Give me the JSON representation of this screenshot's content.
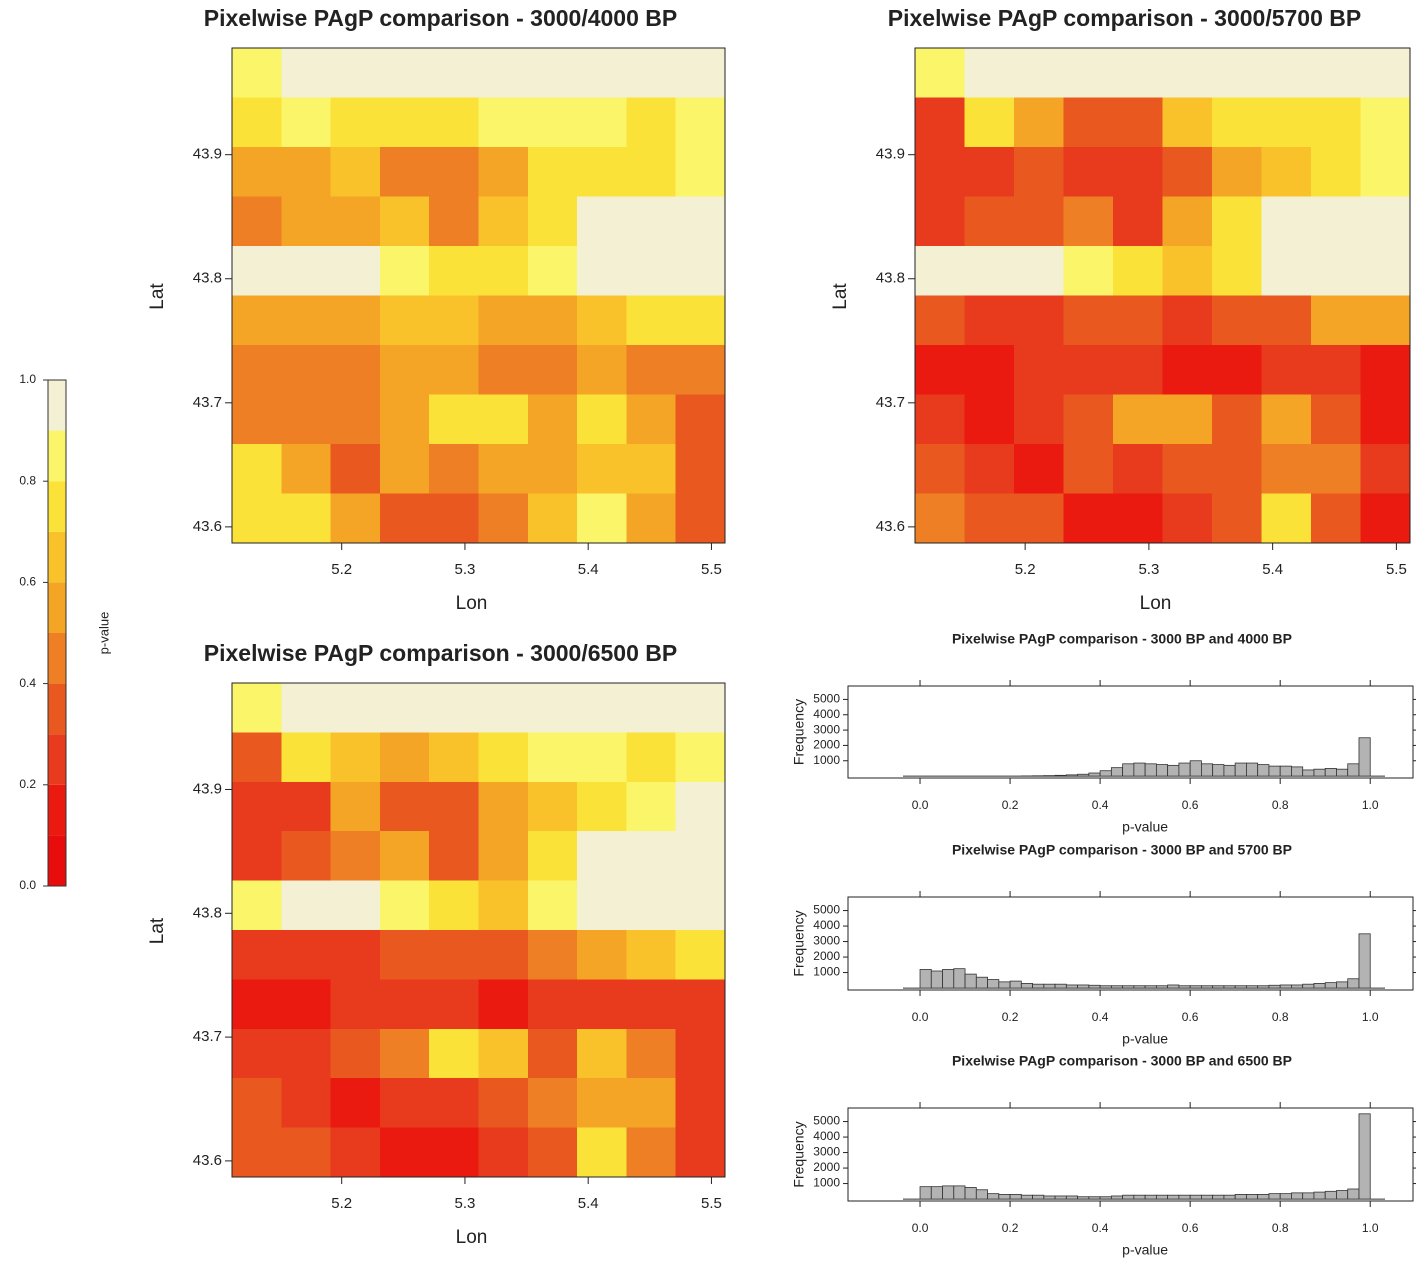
{
  "chart_data": [
    {
      "type": "colorbar",
      "title": "p-value",
      "lim": [
        0,
        1
      ],
      "breaks": [
        0,
        0.1,
        0.2,
        0.3,
        0.4,
        0.5,
        0.6,
        0.7,
        0.8,
        0.9,
        1
      ],
      "colors": [
        "#e80c0c",
        "#ea1a10",
        "#e83a1c",
        "#e9581f",
        "#ee7f24",
        "#f5a526",
        "#f9c22b",
        "#fbe238",
        "#fbf56a",
        "#f3f0d4"
      ],
      "ticks": [
        {
          "value": 0,
          "label": "0.0"
        },
        {
          "value": 0.2,
          "label": "0.2"
        },
        {
          "value": 0.4,
          "label": "0.4"
        },
        {
          "value": 0.6,
          "label": "0.6"
        },
        {
          "value": 0.8,
          "label": "0.8"
        },
        {
          "value": 1,
          "label": "1.0"
        }
      ]
    },
    {
      "type": "heatmap",
      "title": "Pixelwise PAgP comparison - 3000/4000 BP",
      "xlabel": "Lon",
      "ylabel": "Lat",
      "xlim": [
        5.111,
        5.511
      ],
      "ylim": [
        43.587,
        43.986
      ],
      "xticks": [
        5.2,
        5.3,
        5.4,
        5.5
      ],
      "yticks": [
        43.6,
        43.7,
        43.8,
        43.9
      ],
      "z": [
        [
          0.85,
          0.92,
          0.95,
          0.95,
          0.92,
          0.95,
          0.95,
          0.95,
          0.95,
          0.92
        ],
        [
          0.75,
          0.8,
          0.7,
          0.75,
          0.75,
          0.85,
          0.85,
          0.8,
          0.75,
          0.8
        ],
        [
          0.5,
          0.5,
          0.6,
          0.45,
          0.45,
          0.55,
          0.7,
          0.7,
          0.75,
          0.85
        ],
        [
          0.45,
          0.5,
          0.55,
          0.6,
          0.45,
          0.6,
          0.75,
          0.9,
          0.95,
          0.95
        ],
        [
          0.9,
          0.92,
          0.95,
          0.85,
          0.75,
          0.7,
          0.8,
          0.95,
          0.95,
          0.95
        ],
        [
          0.55,
          0.5,
          0.5,
          0.6,
          0.65,
          0.5,
          0.55,
          0.6,
          0.7,
          0.75
        ],
        [
          0.4,
          0.45,
          0.45,
          0.5,
          0.5,
          0.45,
          0.45,
          0.5,
          0.45,
          0.4
        ],
        [
          0.4,
          0.4,
          0.45,
          0.55,
          0.75,
          0.7,
          0.5,
          0.75,
          0.5,
          0.35
        ],
        [
          0.7,
          0.5,
          0.35,
          0.5,
          0.45,
          0.5,
          0.55,
          0.6,
          0.65,
          0.35
        ],
        [
          0.75,
          0.7,
          0.55,
          0.35,
          0.35,
          0.45,
          0.6,
          0.85,
          0.55,
          0.35
        ]
      ]
    },
    {
      "type": "heatmap",
      "title": "Pixelwise PAgP comparison - 3000/5700 BP",
      "xlabel": "Lon",
      "ylabel": "Lat",
      "xlim": [
        5.111,
        5.511
      ],
      "ylim": [
        43.587,
        43.986
      ],
      "xticks": [
        5.2,
        5.3,
        5.4,
        5.5
      ],
      "yticks": [
        43.6,
        43.7,
        43.8,
        43.9
      ],
      "z": [
        [
          0.85,
          0.92,
          0.95,
          0.95,
          0.92,
          0.95,
          0.95,
          0.95,
          0.95,
          0.92
        ],
        [
          0.25,
          0.7,
          0.55,
          0.3,
          0.3,
          0.6,
          0.75,
          0.75,
          0.7,
          0.8
        ],
        [
          0.2,
          0.25,
          0.3,
          0.2,
          0.2,
          0.3,
          0.55,
          0.65,
          0.7,
          0.85
        ],
        [
          0.2,
          0.3,
          0.35,
          0.4,
          0.2,
          0.5,
          0.7,
          0.9,
          0.95,
          0.95
        ],
        [
          0.9,
          0.92,
          0.95,
          0.8,
          0.7,
          0.6,
          0.7,
          0.9,
          0.95,
          0.9
        ],
        [
          0.3,
          0.25,
          0.25,
          0.3,
          0.35,
          0.25,
          0.3,
          0.35,
          0.5,
          0.55
        ],
        [
          0.15,
          0.15,
          0.2,
          0.2,
          0.2,
          0.15,
          0.15,
          0.2,
          0.2,
          0.15
        ],
        [
          0.2,
          0.15,
          0.2,
          0.35,
          0.55,
          0.5,
          0.3,
          0.55,
          0.3,
          0.15
        ],
        [
          0.35,
          0.25,
          0.15,
          0.3,
          0.25,
          0.3,
          0.35,
          0.4,
          0.45,
          0.2
        ],
        [
          0.4,
          0.35,
          0.3,
          0.15,
          0.15,
          0.2,
          0.3,
          0.7,
          0.3,
          0.15
        ]
      ]
    },
    {
      "type": "heatmap",
      "title": "Pixelwise PAgP comparison - 3000/6500 BP",
      "xlabel": "Lon",
      "ylabel": "Lat",
      "xlim": [
        5.111,
        5.511
      ],
      "ylim": [
        43.587,
        43.986
      ],
      "xticks": [
        5.2,
        5.3,
        5.4,
        5.5
      ],
      "yticks": [
        43.6,
        43.7,
        43.8,
        43.9
      ],
      "z": [
        [
          0.85,
          0.92,
          0.95,
          0.95,
          0.92,
          0.95,
          0.95,
          0.95,
          0.95,
          0.92
        ],
        [
          0.3,
          0.75,
          0.65,
          0.5,
          0.6,
          0.75,
          0.8,
          0.8,
          0.75,
          0.85
        ],
        [
          0.2,
          0.25,
          0.5,
          0.35,
          0.3,
          0.5,
          0.65,
          0.75,
          0.8,
          0.9
        ],
        [
          0.25,
          0.3,
          0.45,
          0.55,
          0.35,
          0.55,
          0.75,
          0.9,
          0.95,
          0.95
        ],
        [
          0.85,
          0.9,
          0.9,
          0.8,
          0.7,
          0.65,
          0.8,
          0.9,
          0.95,
          0.9
        ],
        [
          0.2,
          0.2,
          0.25,
          0.3,
          0.35,
          0.3,
          0.45,
          0.5,
          0.6,
          0.7
        ],
        [
          0.15,
          0.15,
          0.2,
          0.2,
          0.2,
          0.15,
          0.2,
          0.25,
          0.25,
          0.2
        ],
        [
          0.2,
          0.2,
          0.3,
          0.45,
          0.7,
          0.6,
          0.35,
          0.6,
          0.4,
          0.2
        ],
        [
          0.3,
          0.2,
          0.15,
          0.25,
          0.25,
          0.3,
          0.4,
          0.5,
          0.55,
          0.25
        ],
        [
          0.3,
          0.3,
          0.25,
          0.15,
          0.15,
          0.2,
          0.35,
          0.75,
          0.4,
          0.25
        ]
      ]
    },
    {
      "type": "histogram",
      "title": "Pixelwise PAgP comparison - 3000 BP and 4000 BP",
      "xlabel": "p-value",
      "ylabel": "Frequency",
      "color": "#b3b3b3",
      "bins": [
        0,
        0.025,
        0.05,
        0.075,
        0.1,
        0.125,
        0.15,
        0.175,
        0.2,
        0.225,
        0.25,
        0.275,
        0.3,
        0.325,
        0.35,
        0.375,
        0.4,
        0.425,
        0.45,
        0.475,
        0.5,
        0.525,
        0.55,
        0.575,
        0.6,
        0.625,
        0.65,
        0.675,
        0.7,
        0.725,
        0.75,
        0.775,
        0.8,
        0.825,
        0.85,
        0.875,
        0.9,
        0.925,
        0.95,
        0.975,
        1
      ],
      "values": [
        0,
        0,
        0,
        0,
        0,
        0,
        0,
        0,
        0,
        10,
        20,
        30,
        50,
        80,
        120,
        200,
        350,
        550,
        800,
        850,
        800,
        750,
        700,
        850,
        1000,
        800,
        750,
        700,
        850,
        850,
        750,
        650,
        650,
        600,
        400,
        450,
        500,
        450,
        800,
        2500
      ],
      "xlim": [
        -0.16,
        1.095
      ],
      "ylim": [
        -125,
        5875
      ],
      "xticks": [
        {
          "value": 0,
          "label": "0.0"
        },
        {
          "value": 0.2,
          "label": "0.2"
        },
        {
          "value": 0.4,
          "label": "0.4"
        },
        {
          "value": 0.6,
          "label": "0.6"
        },
        {
          "value": 0.8,
          "label": "0.8"
        },
        {
          "value": 1,
          "label": "1.0"
        }
      ],
      "yticks": [
        1000,
        2000,
        3000,
        4000,
        5000
      ]
    },
    {
      "type": "histogram",
      "title": "Pixelwise PAgP comparison - 3000 BP and 5700 BP",
      "xlabel": "p-value",
      "ylabel": "Frequency",
      "color": "#b3b3b3",
      "bins": [
        0,
        0.025,
        0.05,
        0.075,
        0.1,
        0.125,
        0.15,
        0.175,
        0.2,
        0.225,
        0.25,
        0.275,
        0.3,
        0.325,
        0.35,
        0.375,
        0.4,
        0.425,
        0.45,
        0.475,
        0.5,
        0.525,
        0.55,
        0.575,
        0.6,
        0.625,
        0.65,
        0.675,
        0.7,
        0.725,
        0.75,
        0.775,
        0.8,
        0.825,
        0.85,
        0.875,
        0.9,
        0.925,
        0.95,
        0.975,
        1
      ],
      "values": [
        1200,
        1100,
        1200,
        1250,
        900,
        700,
        550,
        400,
        450,
        300,
        250,
        250,
        250,
        200,
        200,
        180,
        150,
        150,
        150,
        150,
        150,
        150,
        200,
        150,
        150,
        150,
        150,
        150,
        150,
        150,
        150,
        180,
        200,
        200,
        250,
        300,
        350,
        400,
        600,
        3500
      ],
      "xlim": [
        -0.16,
        1.095
      ],
      "ylim": [
        -125,
        5875
      ],
      "xticks": [
        {
          "value": 0,
          "label": "0.0"
        },
        {
          "value": 0.2,
          "label": "0.2"
        },
        {
          "value": 0.4,
          "label": "0.4"
        },
        {
          "value": 0.6,
          "label": "0.6"
        },
        {
          "value": 0.8,
          "label": "0.8"
        },
        {
          "value": 1,
          "label": "1.0"
        }
      ],
      "yticks": [
        1000,
        2000,
        3000,
        4000,
        5000
      ]
    },
    {
      "type": "histogram",
      "title": "Pixelwise PAgP comparison - 3000 BP and 6500 BP",
      "xlabel": "p-value",
      "ylabel": "Frequency",
      "color": "#b3b3b3",
      "bins": [
        0,
        0.025,
        0.05,
        0.075,
        0.1,
        0.125,
        0.15,
        0.175,
        0.2,
        0.225,
        0.25,
        0.275,
        0.3,
        0.325,
        0.35,
        0.375,
        0.4,
        0.425,
        0.45,
        0.475,
        0.5,
        0.525,
        0.55,
        0.575,
        0.6,
        0.625,
        0.65,
        0.675,
        0.7,
        0.725,
        0.75,
        0.775,
        0.8,
        0.825,
        0.85,
        0.875,
        0.9,
        0.925,
        0.95,
        0.975,
        1
      ],
      "values": [
        800,
        800,
        850,
        850,
        750,
        600,
        350,
        300,
        300,
        250,
        250,
        200,
        200,
        200,
        150,
        150,
        150,
        200,
        250,
        250,
        250,
        250,
        250,
        250,
        250,
        250,
        250,
        250,
        300,
        300,
        300,
        350,
        350,
        400,
        400,
        450,
        500,
        550,
        650,
        5500
      ],
      "xlim": [
        -0.16,
        1.095
      ],
      "ylim": [
        -125,
        5875
      ],
      "xticks": [
        {
          "value": 0,
          "label": "0.0"
        },
        {
          "value": 0.2,
          "label": "0.2"
        },
        {
          "value": 0.4,
          "label": "0.4"
        },
        {
          "value": 0.6,
          "label": "0.6"
        },
        {
          "value": 0.8,
          "label": "0.8"
        },
        {
          "value": 1,
          "label": "1.0"
        }
      ],
      "yticks": [
        1000,
        2000,
        3000,
        4000,
        5000
      ]
    }
  ]
}
